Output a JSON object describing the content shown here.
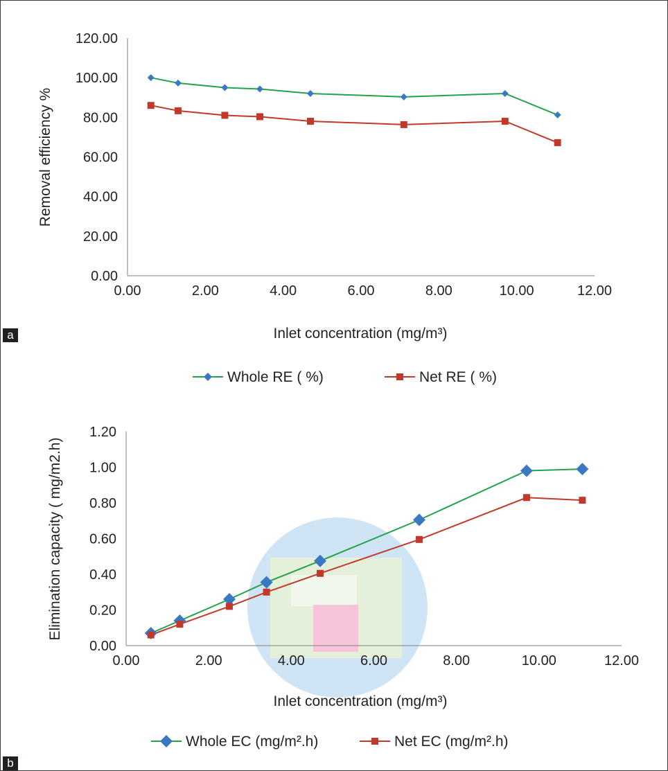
{
  "chart_data": [
    {
      "panel": "a",
      "type": "line",
      "xlabel": "Inlet concentration (mg/m³)",
      "ylabel": "Removal efficiency  %",
      "xlim": [
        0,
        12
      ],
      "ylim": [
        0,
        120
      ],
      "xticks": [
        "0.00",
        "2.00",
        "4.00",
        "6.00",
        "8.00",
        "10.00",
        "12.00"
      ],
      "yticks": [
        "0.00",
        "20.00",
        "40.00",
        "60.00",
        "80.00",
        "100.00",
        "120.00"
      ],
      "grid": false,
      "legend_position": "bottom",
      "series": [
        {
          "name": "Whole RE ( %)",
          "color": "#22a34a",
          "marker_color": "#3a78c4",
          "marker": "diamond",
          "x": [
            0.6,
            1.3,
            2.5,
            3.4,
            4.7,
            7.1,
            9.7,
            11.05
          ],
          "y": [
            100.0,
            97.3,
            95.0,
            94.3,
            92.0,
            90.3,
            92.0,
            81.2
          ]
        },
        {
          "name": "Net RE ( %)",
          "color": "#c0392b",
          "marker_color": "#c0392b",
          "marker": "square",
          "x": [
            0.6,
            1.3,
            2.5,
            3.4,
            4.7,
            7.1,
            9.7,
            11.05
          ],
          "y": [
            86.0,
            83.3,
            81.0,
            80.3,
            78.0,
            76.3,
            78.0,
            67.2
          ]
        }
      ]
    },
    {
      "panel": "b",
      "type": "line",
      "xlabel": "Inlet concentration (mg/m³)",
      "ylabel": "Elimination capacity ( mg/m2.h)",
      "xlim": [
        0,
        12
      ],
      "ylim": [
        0,
        1.2
      ],
      "xticks": [
        "0.00",
        "2.00",
        "4.00",
        "6.00",
        "8.00",
        "10.00",
        "12.00"
      ],
      "yticks": [
        "0.00",
        "0.20",
        "0.40",
        "0.60",
        "0.80",
        "1.00",
        "1.20"
      ],
      "grid": false,
      "legend_position": "bottom",
      "series": [
        {
          "name": "Whole EC (mg/m².h)",
          "color": "#22a34a",
          "marker_color": "#3a78c4",
          "marker": "diamond",
          "x": [
            0.6,
            1.3,
            2.5,
            3.4,
            4.7,
            7.1,
            9.7,
            11.05
          ],
          "y": [
            0.07,
            0.14,
            0.26,
            0.355,
            0.475,
            0.705,
            0.98,
            0.99
          ]
        },
        {
          "name": "Net EC (mg/m².h)",
          "color": "#c0392b",
          "marker_color": "#c0392b",
          "marker": "square",
          "x": [
            0.6,
            1.3,
            2.5,
            3.4,
            4.7,
            7.1,
            9.7,
            11.05
          ],
          "y": [
            0.06,
            0.12,
            0.22,
            0.3,
            0.405,
            0.595,
            0.83,
            0.815
          ]
        }
      ]
    }
  ],
  "panel_labels": [
    "a",
    "b"
  ]
}
